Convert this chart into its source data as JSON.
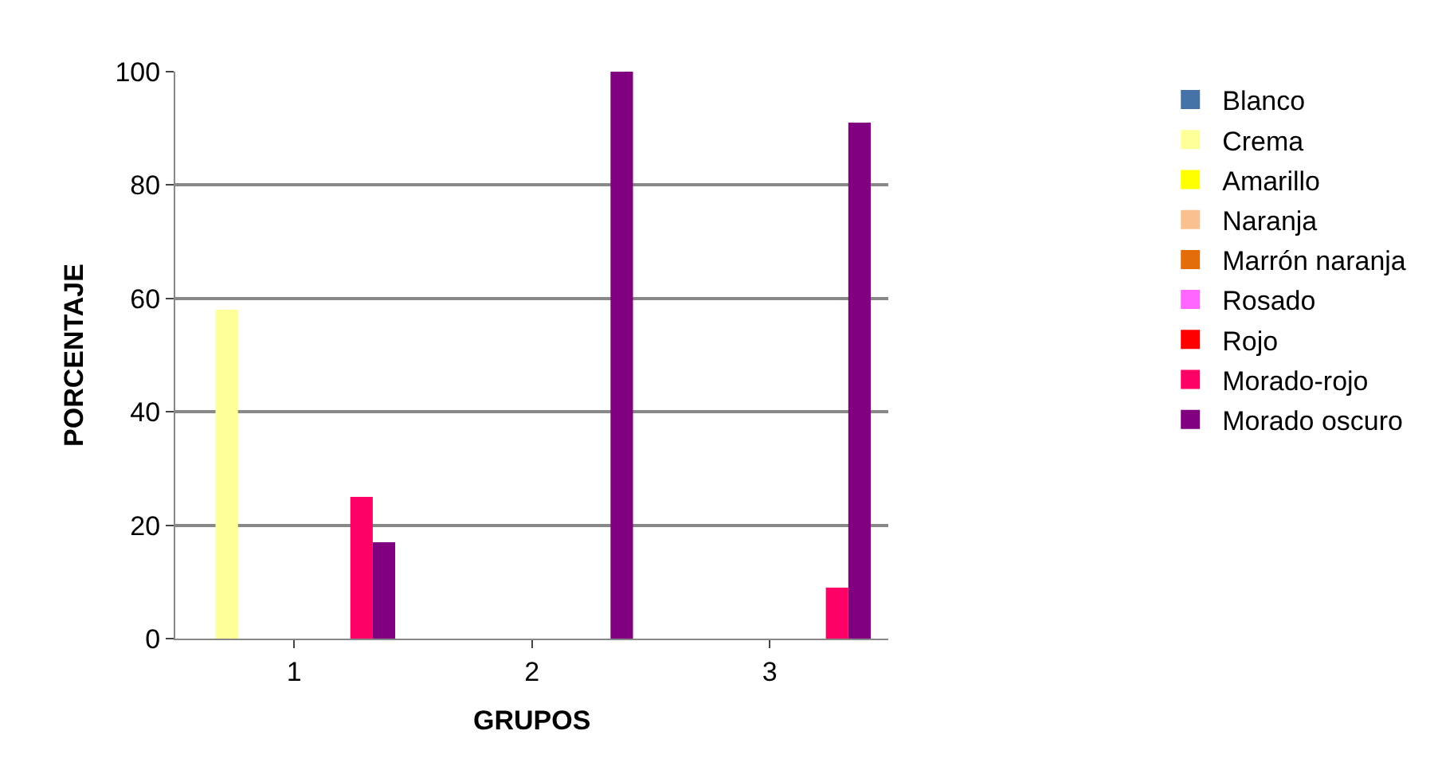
{
  "chart_data": {
    "type": "bar",
    "xlabel": "GRUPOS",
    "ylabel": "PORCENTAJE",
    "categories": [
      "1",
      "2",
      "3"
    ],
    "series": [
      {
        "name": "Blanco",
        "color": "#4572a7",
        "values": [
          0,
          0,
          0
        ]
      },
      {
        "name": "Crema",
        "color": "#ffff99",
        "values": [
          58,
          0,
          0
        ]
      },
      {
        "name": "Amarillo",
        "color": "#ffff00",
        "values": [
          0,
          0,
          0
        ]
      },
      {
        "name": "Naranja",
        "color": "#fac090",
        "values": [
          0,
          0,
          0
        ]
      },
      {
        "name": "Marrón naranja",
        "color": "#e46c0a",
        "values": [
          0,
          0,
          0
        ]
      },
      {
        "name": "Rosado",
        "color": "#ff66ff",
        "values": [
          0,
          0,
          0
        ]
      },
      {
        "name": "Rojo",
        "color": "#ff0000",
        "values": [
          0,
          0,
          0
        ]
      },
      {
        "name": "Morado-rojo",
        "color": "#ff0066",
        "values": [
          25,
          0,
          9
        ]
      },
      {
        "name": "Morado oscuro",
        "color": "#800080",
        "values": [
          17,
          100,
          91
        ]
      }
    ],
    "ylim": [
      0,
      100
    ],
    "yticks": [
      0,
      20,
      40,
      60,
      80,
      100
    ],
    "grid": "y",
    "legend": "right"
  }
}
